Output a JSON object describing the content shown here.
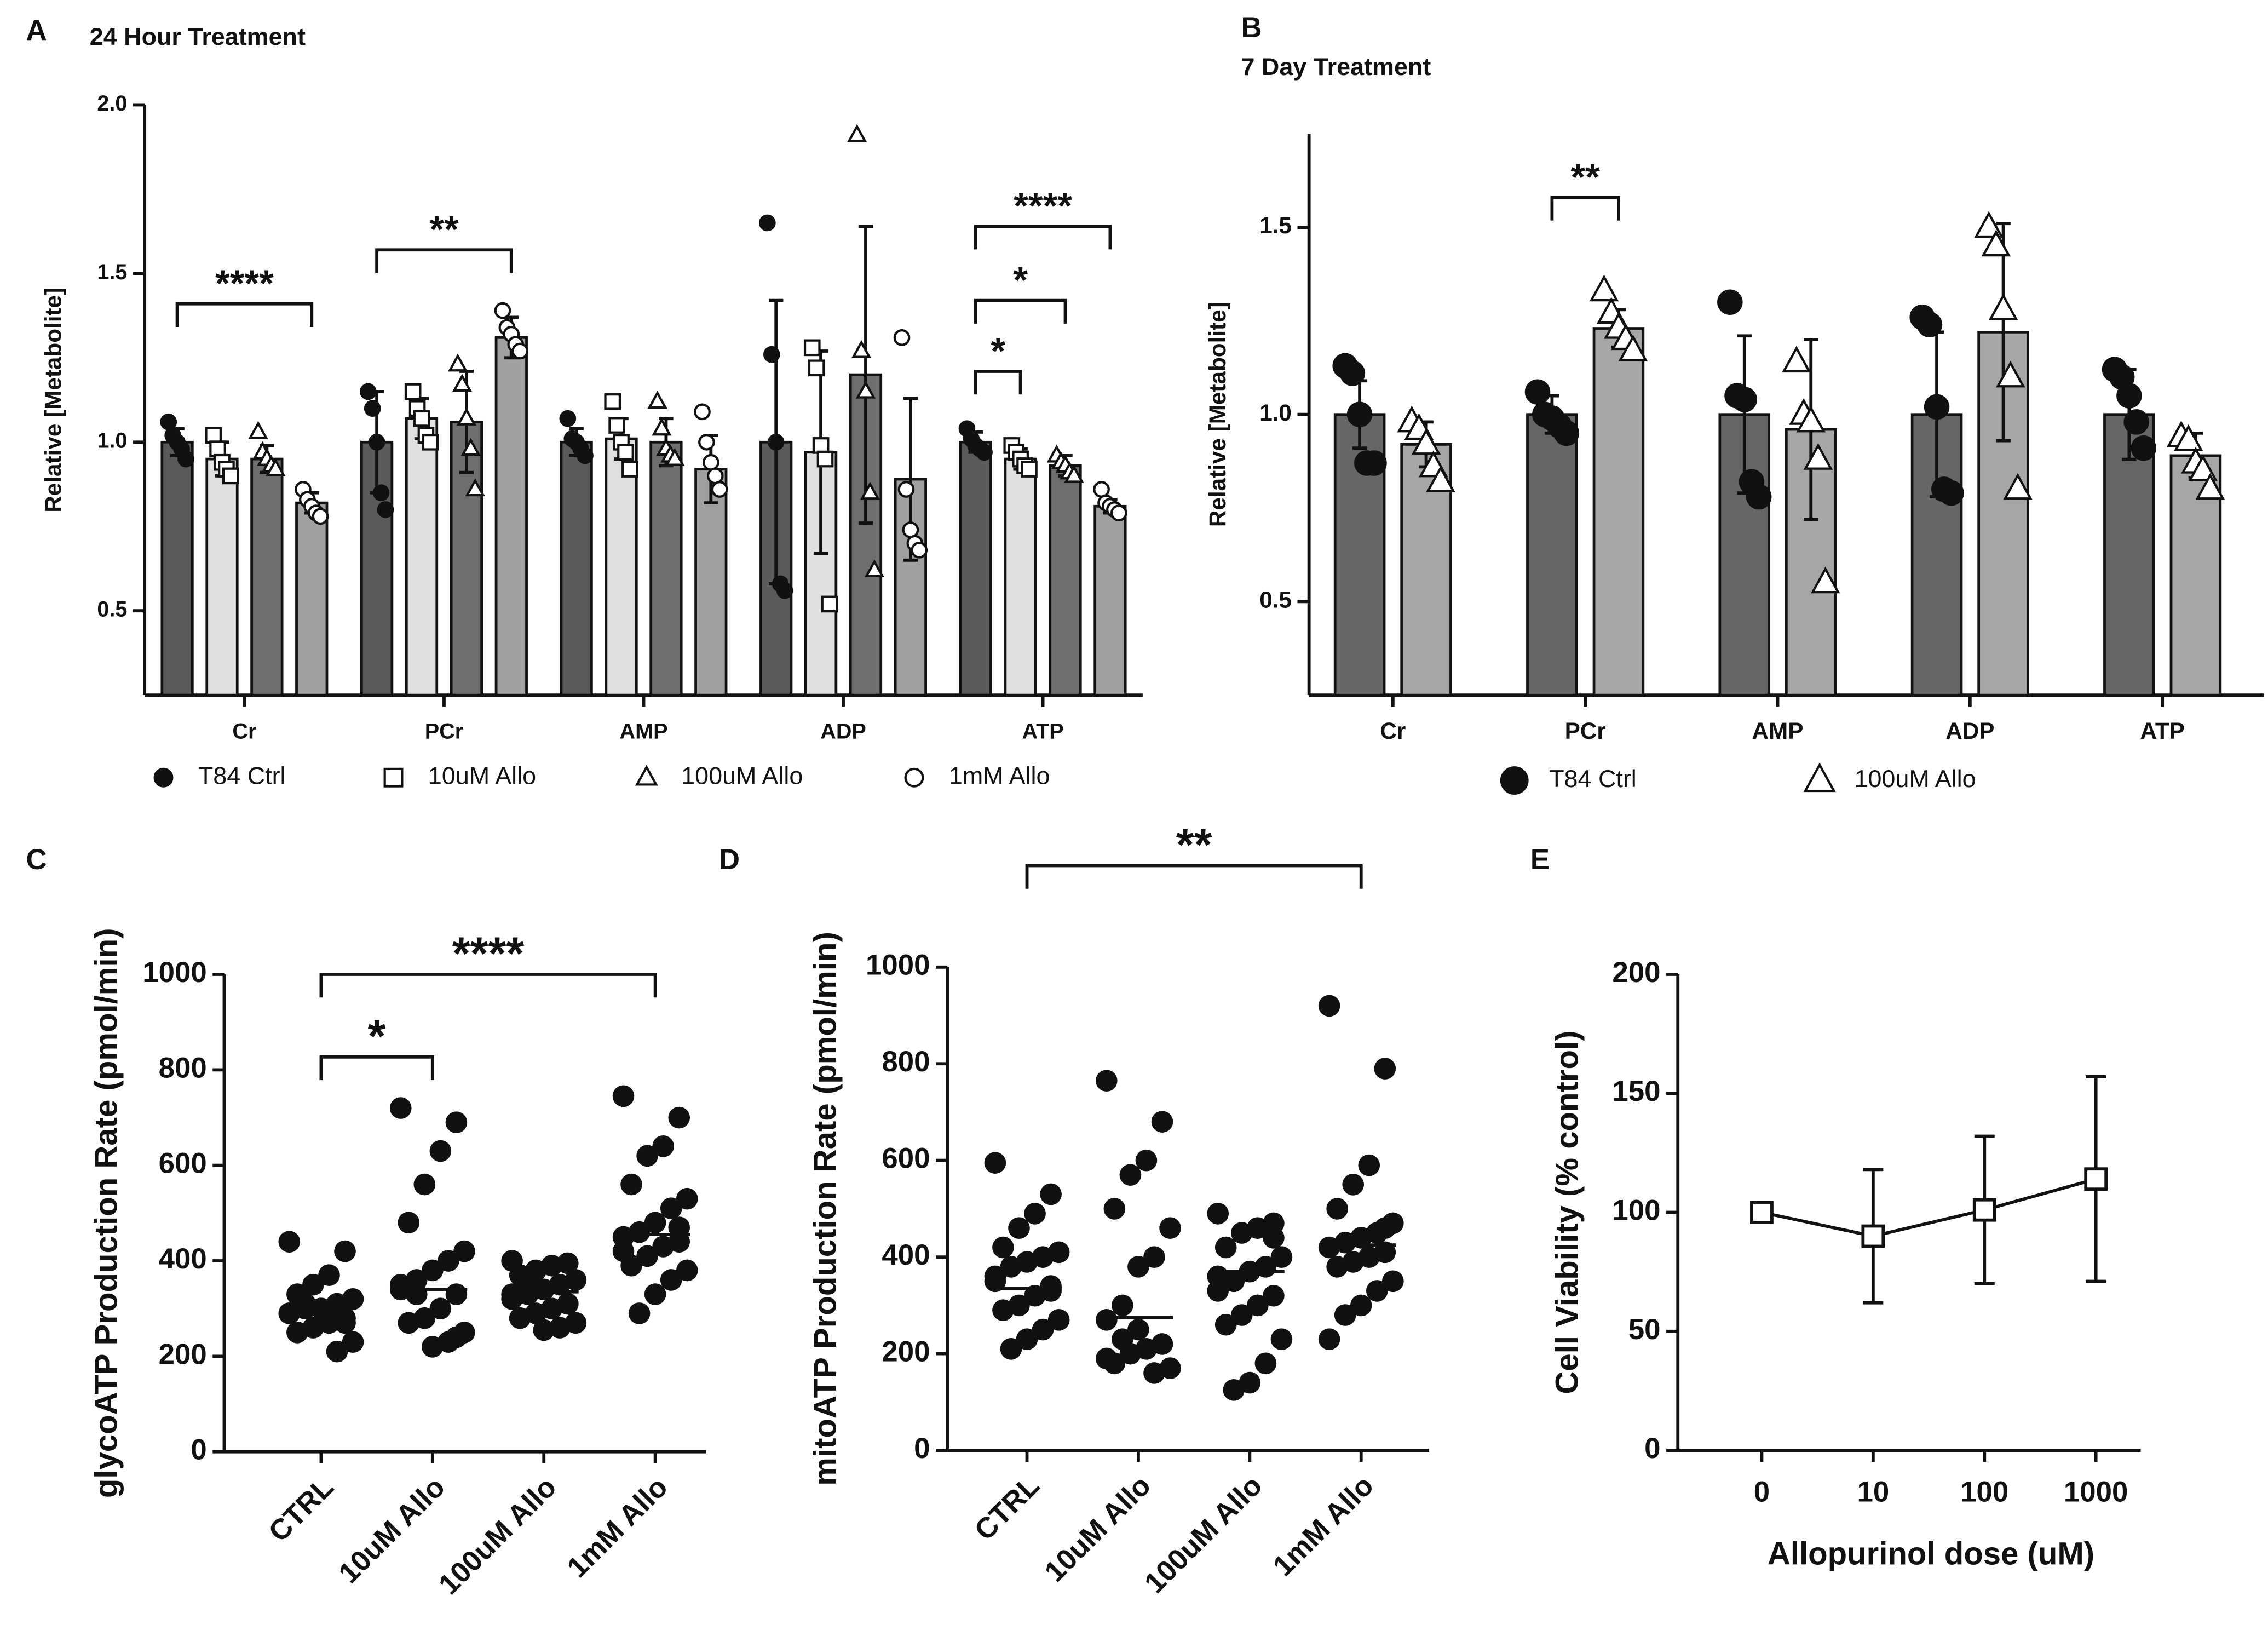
{
  "chart_data": [
    {
      "type": "bar",
      "label": "A",
      "title": "24 Hour Treatment",
      "ylabel": "Relative [Metabolite]",
      "categories": [
        "Cr",
        "PCr",
        "AMP",
        "ADP",
        "ATP"
      ],
      "ylim": [
        0.25,
        2.0
      ],
      "yticks": [
        0.5,
        {
          "value": 1,
          "label": "1.0"
        },
        1.5,
        {
          "value": 2,
          "label": "2.0"
        }
      ],
      "series": [
        {
          "name": "T84 Ctrl",
          "color": "#5a5a5a",
          "marker": "circle-filled",
          "values": [
            1.0,
            1.0,
            1.0,
            1.0,
            1.0
          ],
          "errors": [
            0.04,
            0.15,
            0.04,
            0.42,
            0.03
          ],
          "points": [
            [
              1.06,
              1.02,
              1.0,
              0.98,
              0.95
            ],
            [
              1.15,
              1.1,
              1.0,
              0.85,
              0.8
            ],
            [
              1.07,
              1.01,
              1.0,
              0.98,
              0.96
            ],
            [
              1.65,
              1.26,
              1.0,
              0.58,
              0.56
            ],
            [
              1.04,
              1.01,
              0.99,
              0.98,
              0.97
            ]
          ]
        },
        {
          "name": "10uM Allo",
          "color": "#e0e0e0",
          "marker": "square-open",
          "values": [
            0.95,
            1.07,
            1.01,
            0.97,
            0.95
          ],
          "errors": [
            0.05,
            0.06,
            0.06,
            0.3,
            0.03
          ],
          "points": [
            [
              1.02,
              0.98,
              0.94,
              0.92,
              0.9
            ],
            [
              1.15,
              1.1,
              1.07,
              1.02,
              1.0
            ],
            [
              1.12,
              1.05,
              1.0,
              0.97,
              0.92
            ],
            [
              1.28,
              1.22,
              0.99,
              0.95,
              0.52
            ],
            [
              0.99,
              0.97,
              0.95,
              0.93,
              0.92
            ]
          ]
        },
        {
          "name": "100uM Allo",
          "color": "#6e6e6e",
          "marker": "triangle-open",
          "values": [
            0.95,
            1.06,
            1.0,
            1.2,
            0.93
          ],
          "errors": [
            0.04,
            0.15,
            0.07,
            0.44,
            0.03
          ],
          "points": [
            [
              1.03,
              0.97,
              0.95,
              0.93,
              0.92
            ],
            [
              1.23,
              1.17,
              1.07,
              0.98,
              0.86
            ],
            [
              1.12,
              1.04,
              0.98,
              0.96,
              0.95
            ],
            [
              1.91,
              1.27,
              1.15,
              0.85,
              0.62
            ],
            [
              0.96,
              0.94,
              0.93,
              0.91,
              0.9
            ]
          ]
        },
        {
          "name": "1mM Allo",
          "color": "#a0a0a0",
          "marker": "circle-open",
          "values": [
            0.82,
            1.31,
            0.92,
            0.89,
            0.81
          ],
          "errors": [
            0.03,
            0.06,
            0.1,
            0.24,
            0.02
          ],
          "points": [
            [
              0.86,
              0.83,
              0.81,
              0.79,
              0.78
            ],
            [
              1.39,
              1.34,
              1.32,
              1.29,
              1.27
            ],
            [
              1.09,
              1.0,
              0.94,
              0.9,
              0.86
            ],
            [
              1.31,
              0.86,
              0.74,
              0.7,
              0.68
            ],
            [
              0.86,
              0.82,
              0.81,
              0.8,
              0.79
            ]
          ]
        }
      ],
      "annotations": [
        {
          "text": "****",
          "category": 0,
          "from": 0,
          "to": 3,
          "y": 1.41
        },
        {
          "text": "**",
          "category": 1,
          "from": 0,
          "to": 3,
          "y": 1.57
        },
        {
          "text": "*",
          "category": 4,
          "from": 0,
          "to": 1,
          "y": 1.21
        },
        {
          "text": "*",
          "category": 4,
          "from": 0,
          "to": 2,
          "y": 1.42
        },
        {
          "text": "****",
          "category": 4,
          "from": 0,
          "to": 3,
          "y": 1.64
        }
      ]
    },
    {
      "type": "bar",
      "label": "B",
      "title": "7 Day Treatment",
      "ylabel": "Relative [Metabolite]",
      "categories": [
        "Cr",
        "PCr",
        "AMP",
        "ADP",
        "ATP"
      ],
      "ylim": [
        0.25,
        1.75
      ],
      "yticks": [
        0.5,
        {
          "value": 1,
          "label": "1.0"
        },
        1.5
      ],
      "series": [
        {
          "name": "T84 Ctrl",
          "color": "#666666",
          "marker": "circle-filled",
          "values": [
            1.0,
            1.0,
            1.0,
            1.0,
            1.0
          ],
          "errors": [
            0.09,
            0.05,
            0.21,
            0.22,
            0.12
          ],
          "points": [
            [
              1.13,
              1.11,
              1.0,
              0.87,
              0.87
            ],
            [
              1.06,
              1.0,
              0.99,
              0.97,
              0.95
            ],
            [
              1.3,
              1.05,
              1.04,
              0.82,
              0.78
            ],
            [
              1.26,
              1.24,
              1.02,
              0.8,
              0.79
            ],
            [
              1.12,
              1.1,
              1.05,
              0.98,
              0.91
            ]
          ]
        },
        {
          "name": "100uM Allo",
          "color": "#a6a6a6",
          "marker": "triangle-open",
          "values": [
            0.92,
            1.23,
            0.96,
            1.22,
            0.89
          ],
          "errors": [
            0.06,
            0.05,
            0.24,
            0.29,
            0.06
          ],
          "points": [
            [
              0.98,
              0.96,
              0.92,
              0.86,
              0.82
            ],
            [
              1.33,
              1.27,
              1.23,
              1.2,
              1.17
            ],
            [
              1.14,
              1.0,
              0.98,
              0.88,
              0.55
            ],
            [
              1.5,
              1.45,
              1.28,
              1.1,
              0.8
            ],
            [
              0.94,
              0.93,
              0.87,
              0.85,
              0.8
            ]
          ]
        }
      ],
      "annotations": [
        {
          "text": "**",
          "category": 1,
          "from": 0,
          "to": 1,
          "y": 1.58
        }
      ]
    },
    {
      "type": "dot",
      "label": "C",
      "ylabel": "glycoATP Production Rate (pmol/min)",
      "color": "#111111",
      "categories": [
        "CTRL",
        "10uM Allo",
        "100uM Allo",
        "1mM Allo"
      ],
      "ylim": [
        0,
        1000
      ],
      "yticks": [
        0,
        200,
        400,
        600,
        800,
        1000
      ],
      "points": [
        [
          440,
          420,
          370,
          350,
          330,
          320,
          310,
          300,
          300,
          290,
          280,
          270,
          260,
          250,
          230,
          210,
          300,
          310,
          290,
          270
        ],
        [
          720,
          690,
          630,
          560,
          480,
          420,
          400,
          380,
          360,
          340,
          330,
          300,
          280,
          270,
          250,
          230,
          220,
          330,
          350,
          240
        ],
        [
          400,
          395,
          390,
          380,
          370,
          360,
          350,
          340,
          330,
          320,
          310,
          300,
          290,
          280,
          270,
          260,
          255,
          350,
          330,
          310
        ],
        [
          745,
          700,
          640,
          620,
          560,
          530,
          510,
          480,
          460,
          450,
          440,
          430,
          410,
          390,
          380,
          360,
          330,
          290,
          420,
          470
        ]
      ],
      "medians": [
        300,
        340,
        335,
        455
      ],
      "annotations": [
        {
          "text": "*",
          "from": 0,
          "to": 1,
          "y": 827
        },
        {
          "text": "****",
          "from": 0,
          "to": 3,
          "y": 1000
        }
      ]
    },
    {
      "type": "dot",
      "label": "D",
      "ylabel": "mitoATP Production Rate (pmol/min)",
      "color": "#111111",
      "categories": [
        "CTRL",
        "10uM Allo",
        "100uM Allo",
        "1mM Allo"
      ],
      "ylim": [
        0,
        1000
      ],
      "yticks": [
        0,
        200,
        400,
        600,
        800,
        1000
      ],
      "points": [
        [
          595,
          530,
          490,
          460,
          420,
          410,
          400,
          390,
          380,
          350,
          340,
          320,
          300,
          290,
          270,
          250,
          230,
          210,
          360,
          330
        ],
        [
          765,
          680,
          600,
          570,
          500,
          460,
          400,
          380,
          300,
          270,
          220,
          210,
          200,
          180,
          170,
          160,
          250,
          230,
          190
        ],
        [
          490,
          470,
          460,
          450,
          420,
          400,
          380,
          370,
          350,
          330,
          320,
          300,
          280,
          260,
          230,
          180,
          140,
          125,
          360,
          440
        ],
        [
          920,
          790,
          590,
          550,
          500,
          470,
          450,
          440,
          430,
          420,
          410,
          400,
          390,
          380,
          350,
          330,
          300,
          280,
          230,
          460
        ]
      ],
      "medians": [
        335,
        275,
        370,
        425
      ],
      "annotations": [
        {
          "text": "**",
          "from": 0,
          "to": 3,
          "y": 1210
        }
      ]
    },
    {
      "type": "line",
      "label": "E",
      "xlabel": "Allopurinol dose (uM)",
      "ylabel": "Cell Viability (% control)",
      "color": "#111111",
      "categories": [
        "0",
        "10",
        "100",
        "1000"
      ],
      "values": [
        100,
        90,
        101,
        114
      ],
      "errors": [
        0,
        28,
        31,
        43
      ],
      "ylim": [
        0,
        200
      ],
      "yticks": [
        0,
        50,
        100,
        150,
        200
      ]
    }
  ]
}
